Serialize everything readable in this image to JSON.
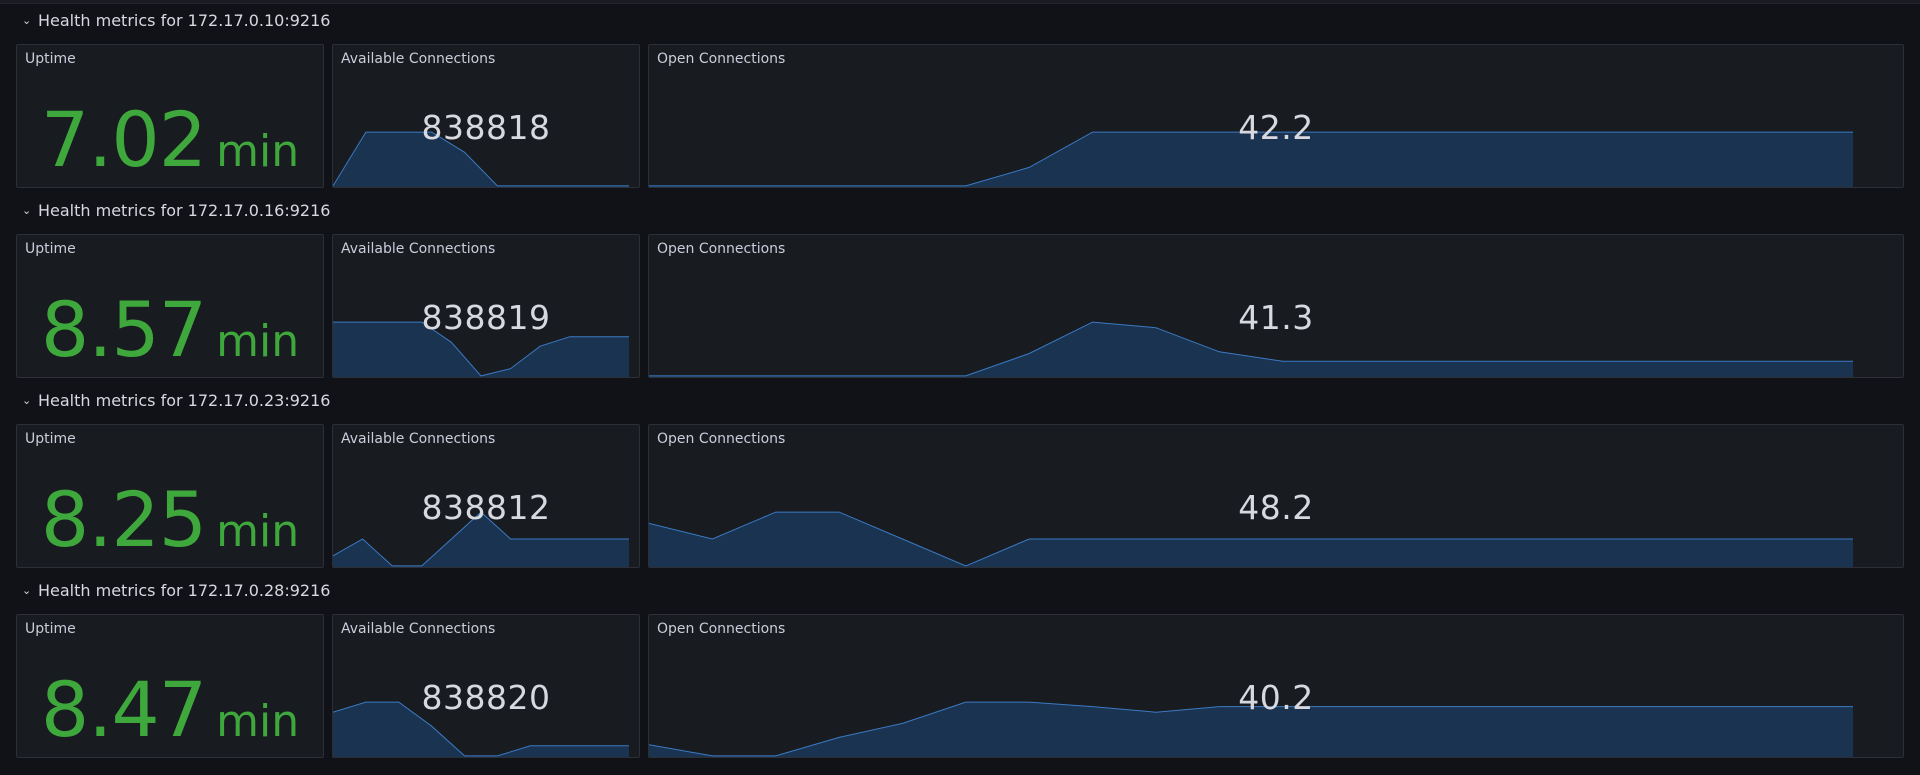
{
  "colors": {
    "uptime_value": "#3fa83c",
    "spark_line": "#3b7ac4",
    "spark_fill": "#1a3350",
    "panel_bg": "#181b1f"
  },
  "rows": [
    {
      "header": "Health metrics for 172.17.0.10:9216",
      "uptime": {
        "title": "Uptime",
        "value": "7.02",
        "unit": "min"
      },
      "avail": {
        "title": "Available Connections",
        "value": "838818",
        "series": [
          0.02,
          0.98,
          0.98,
          0.98,
          0.62,
          0.02,
          0.02,
          0.02,
          0.02,
          0.02
        ]
      },
      "open": {
        "title": "Open Connections",
        "value": "42.2",
        "series": [
          0.02,
          0.02,
          0.02,
          0.02,
          0.02,
          0.02,
          0.35,
          0.98,
          0.98,
          0.98,
          0.98,
          0.98,
          0.98,
          0.98,
          0.98,
          0.98,
          0.98,
          0.98,
          0.98,
          0.98
        ]
      }
    },
    {
      "header": "Health metrics for 172.17.0.16:9216",
      "uptime": {
        "title": "Uptime",
        "value": "8.57",
        "unit": "min"
      },
      "avail": {
        "title": "Available Connections",
        "value": "838819",
        "series": [
          0.98,
          0.98,
          0.98,
          0.98,
          0.62,
          0.02,
          0.15,
          0.55,
          0.72,
          0.72,
          0.72
        ]
      },
      "open": {
        "title": "Open Connections",
        "value": "41.3",
        "series": [
          0.02,
          0.02,
          0.02,
          0.02,
          0.02,
          0.02,
          0.42,
          0.98,
          0.88,
          0.45,
          0.28,
          0.28,
          0.28,
          0.28,
          0.28,
          0.28,
          0.28,
          0.28,
          0.28,
          0.28
        ]
      }
    },
    {
      "header": "Health metrics for 172.17.0.23:9216",
      "uptime": {
        "title": "Uptime",
        "value": "8.25",
        "unit": "min"
      },
      "avail": {
        "title": "Available Connections",
        "value": "838812",
        "series": [
          0.2,
          0.5,
          0.02,
          0.02,
          0.5,
          0.98,
          0.5,
          0.5,
          0.5,
          0.5,
          0.5
        ]
      },
      "open": {
        "title": "Open Connections",
        "value": "48.2",
        "series": [
          0.78,
          0.5,
          0.98,
          0.98,
          0.5,
          0.02,
          0.5,
          0.5,
          0.5,
          0.5,
          0.5,
          0.5,
          0.5,
          0.5,
          0.5,
          0.5,
          0.5,
          0.5,
          0.5,
          0.5
        ]
      }
    },
    {
      "header": "Health metrics for 172.17.0.28:9216",
      "uptime": {
        "title": "Uptime",
        "value": "8.47",
        "unit": "min"
      },
      "avail": {
        "title": "Available Connections",
        "value": "838820",
        "series": [
          0.8,
          0.98,
          0.98,
          0.55,
          0.02,
          0.02,
          0.2,
          0.2,
          0.2,
          0.2
        ]
      },
      "open": {
        "title": "Open Connections",
        "value": "40.2",
        "series": [
          0.22,
          0.02,
          0.02,
          0.35,
          0.6,
          0.98,
          0.98,
          0.9,
          0.8,
          0.9,
          0.9,
          0.9,
          0.9,
          0.9,
          0.9,
          0.9,
          0.9,
          0.9,
          0.9,
          0.9
        ]
      }
    }
  ]
}
